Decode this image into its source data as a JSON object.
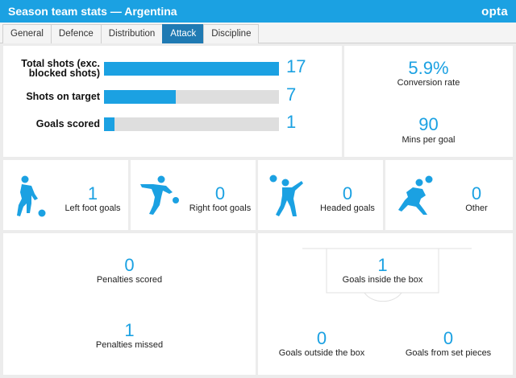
{
  "header": {
    "title": "Season team stats — Argentina",
    "logo": "opta"
  },
  "tabs": [
    "General",
    "Defence",
    "Distribution",
    "Attack",
    "Discipline"
  ],
  "active_tab": "Attack",
  "bars": [
    {
      "label_line1": "Total shots (exc.",
      "label_line2": "blocked shots)",
      "value": "17",
      "fill": 1.0
    },
    {
      "label_line1": "Shots on target",
      "label_line2": "",
      "value": "7",
      "fill": 0.41
    },
    {
      "label_line1": "Goals scored",
      "label_line2": "",
      "value": "1",
      "fill": 0.06
    }
  ],
  "conversion": {
    "value": "5.9%",
    "label": "Conversion rate"
  },
  "mins_per_goal": {
    "value": "90",
    "label": "Mins per goal"
  },
  "foot": [
    {
      "value": "1",
      "label": "Left foot goals",
      "icon": "left-foot-player-icon"
    },
    {
      "value": "0",
      "label": "Right foot goals",
      "icon": "right-foot-player-icon"
    },
    {
      "value": "0",
      "label": "Headed goals",
      "icon": "header-player-icon"
    },
    {
      "value": "0",
      "label": "Other",
      "icon": "volley-player-icon"
    }
  ],
  "penalties": {
    "scored": {
      "value": "0",
      "label": "Penalties scored"
    },
    "missed": {
      "value": "1",
      "label": "Penalties missed"
    }
  },
  "location": {
    "inside": {
      "value": "1",
      "label": "Goals inside the box"
    },
    "outside": {
      "value": "0",
      "label": "Goals outside the box"
    },
    "set_pieces": {
      "value": "0",
      "label": "Goals from set pieces"
    }
  },
  "colors": {
    "accent": "#1ba1e2",
    "tab_active": "#1f7ab3",
    "bar_track": "#dedede"
  }
}
